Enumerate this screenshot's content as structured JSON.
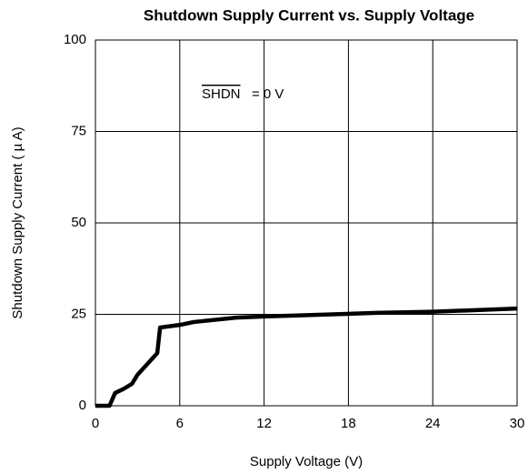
{
  "chart_data": {
    "type": "line",
    "title": "Shutdown Supply Current vs. Supply Voltage",
    "xlabel": "Supply Voltage (V)",
    "ylabel": "Shutdown Supply Current ( µ A)",
    "annotation": {
      "signal": "SHDN",
      "text": "= 0 V"
    },
    "x": [
      0,
      1,
      1.4,
      2,
      2.6,
      3,
      4.4,
      4.6,
      6,
      7,
      10,
      12,
      20,
      24,
      30
    ],
    "series": [
      {
        "name": "Shutdown Supply Current",
        "color": "#000000",
        "values": [
          0,
          0,
          3.5,
          4.6,
          6,
          8.5,
          14.4,
          21.4,
          22.1,
          22.9,
          24.1,
          24.4,
          25.4,
          25.7,
          26.6
        ]
      }
    ],
    "xlim": [
      0,
      30
    ],
    "xticks": [
      0,
      6,
      12,
      18,
      24,
      30
    ],
    "ylim": [
      0,
      100
    ],
    "yticks": [
      0,
      25,
      50,
      75,
      100
    ],
    "grid": true
  }
}
